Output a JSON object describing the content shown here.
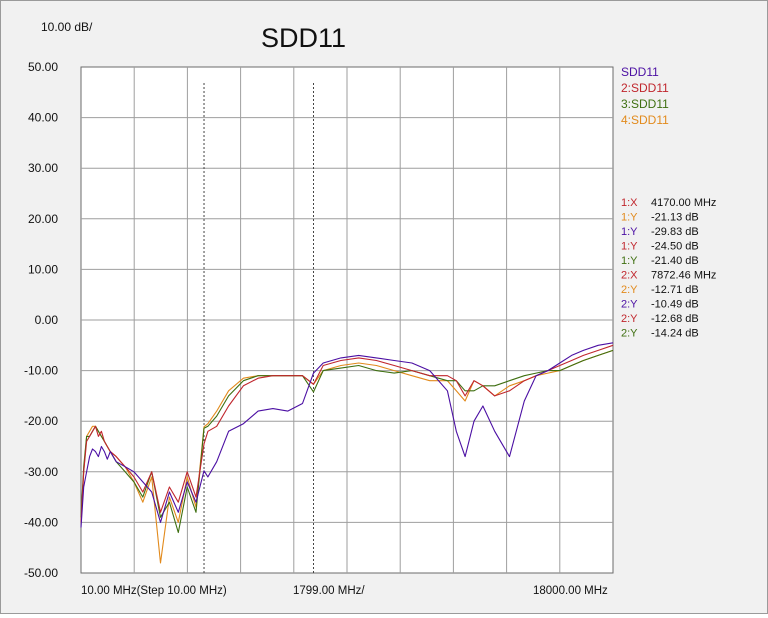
{
  "chart_data": {
    "type": "line",
    "title": "SDD11",
    "scale_label": "10.00 dB/",
    "x_axis": {
      "start_label": "10.00 MHz(Step 10.00 MHz)",
      "center_label": "1799.00 MHz/",
      "stop_label": "18000.00 MHz",
      "xlim": [
        10,
        18000
      ]
    },
    "y_axis": {
      "ylim": [
        -50,
        50
      ],
      "tick_labels": [
        "50.00",
        "40.00",
        "30.00",
        "20.00",
        "10.00",
        "0.00",
        "-10.00",
        "-20.00",
        "-30.00",
        "-40.00",
        "-50.00"
      ]
    },
    "grid": true,
    "legend_position": "top-right",
    "series": [
      {
        "name": "SDD11",
        "color": "#4b0fa3",
        "x": [
          10,
          100,
          200,
          300,
          400,
          500,
          600,
          700,
          800,
          900,
          1000,
          1200,
          1500,
          1800,
          2100,
          2400,
          2700,
          3000,
          3300,
          3600,
          3900,
          4170,
          4300,
          4600,
          5000,
          5500,
          6000,
          6500,
          7000,
          7500,
          7872,
          8200,
          8800,
          9400,
          10000,
          10600,
          11200,
          11800,
          12400,
          12700,
          13000,
          13300,
          13600,
          14000,
          14500,
          15000,
          15400,
          15800,
          16200,
          16600,
          17000,
          17500,
          18000
        ],
        "y": [
          -41,
          -33,
          -30,
          -27,
          -25.5,
          -26,
          -27,
          -25,
          -26,
          -27.5,
          -26,
          -28,
          -29,
          -30,
          -32,
          -34,
          -40,
          -34,
          -38,
          -32,
          -36,
          -29.8,
          -31,
          -28,
          -22,
          -20.5,
          -18,
          -17.5,
          -18,
          -16.5,
          -10.5,
          -8.5,
          -7.5,
          -7,
          -7.5,
          -8,
          -8.5,
          -10,
          -14,
          -22,
          -27,
          -20,
          -17,
          -22,
          -27,
          -16,
          -11,
          -10,
          -8.5,
          -7,
          -6,
          -5,
          -4.5
        ]
      },
      {
        "name": "2:SDD11",
        "color": "#c0262d",
        "x": [
          10,
          100,
          200,
          300,
          400,
          500,
          600,
          700,
          800,
          900,
          1000,
          1200,
          1500,
          1800,
          2100,
          2400,
          2700,
          3000,
          3300,
          3600,
          3900,
          4170,
          4300,
          4600,
          5000,
          5500,
          6000,
          6500,
          7000,
          7500,
          7872,
          8200,
          8800,
          9400,
          10000,
          10600,
          11200,
          11800,
          12400,
          12700,
          13000,
          13300,
          13600,
          14000,
          14500,
          15000,
          15400,
          15800,
          16200,
          16600,
          17000,
          17500,
          18000
        ],
        "y": [
          -40,
          -30,
          -24,
          -23,
          -22,
          -21,
          -23,
          -22,
          -24,
          -25,
          -26,
          -27,
          -29,
          -31,
          -34,
          -30,
          -38,
          -33,
          -36,
          -30,
          -35,
          -24.5,
          -22,
          -21,
          -17,
          -13,
          -11.5,
          -11,
          -11,
          -11,
          -12.7,
          -9,
          -8,
          -7.5,
          -8,
          -9,
          -10,
          -11,
          -11,
          -12,
          -15,
          -12,
          -13,
          -15,
          -14,
          -12,
          -11,
          -10,
          -9,
          -8,
          -7,
          -6,
          -5
        ]
      },
      {
        "name": "3:SDD11",
        "color": "#3e6f10",
        "x": [
          10,
          100,
          200,
          300,
          400,
          500,
          600,
          700,
          800,
          900,
          1000,
          1200,
          1500,
          1800,
          2100,
          2400,
          2700,
          3000,
          3300,
          3600,
          3900,
          4170,
          4300,
          4600,
          5000,
          5500,
          6000,
          6500,
          7000,
          7500,
          7872,
          8200,
          8800,
          9400,
          10000,
          10600,
          11200,
          11800,
          12400,
          12700,
          13000,
          13300,
          13600,
          14000,
          14500,
          15000,
          15400,
          15800,
          16200,
          16600,
          17000,
          17500,
          18000
        ],
        "y": [
          -39,
          -29,
          -23,
          -23,
          -22,
          -21,
          -22,
          -23,
          -24,
          -25,
          -26,
          -28,
          -30,
          -32,
          -35,
          -30,
          -39,
          -36,
          -42,
          -33,
          -38,
          -21.4,
          -21,
          -19,
          -15,
          -12,
          -11,
          -11,
          -11,
          -11,
          -14.2,
          -10,
          -9.5,
          -9,
          -10,
          -10.5,
          -10,
          -11,
          -12,
          -12,
          -14,
          -14,
          -13,
          -13,
          -12,
          -11,
          -10.5,
          -10,
          -10,
          -9,
          -8,
          -7,
          -6
        ]
      },
      {
        "name": "4:SDD11",
        "color": "#e28a1c",
        "x": [
          10,
          100,
          200,
          300,
          400,
          500,
          600,
          700,
          800,
          900,
          1000,
          1200,
          1500,
          1800,
          2100,
          2400,
          2700,
          3000,
          3300,
          3600,
          3900,
          4170,
          4300,
          4600,
          5000,
          5500,
          6000,
          6500,
          7000,
          7500,
          7872,
          8200,
          8800,
          9400,
          10000,
          10600,
          11200,
          11800,
          12400,
          12700,
          13000,
          13300,
          13600,
          14000,
          14500,
          15000,
          15400,
          15800,
          16200,
          16600,
          17000,
          17500,
          18000
        ],
        "y": [
          -40,
          -30,
          -23,
          -22,
          -21,
          -21,
          -22,
          -23,
          -24,
          -25,
          -26,
          -27,
          -29,
          -32,
          -36,
          -31,
          -48,
          -35,
          -40,
          -31,
          -37,
          -21.1,
          -20.5,
          -18,
          -14,
          -11.5,
          -11,
          -11,
          -11,
          -11,
          -12.7,
          -10,
          -9,
          -8.5,
          -9,
          -10,
          -11,
          -12,
          -12,
          -14,
          -16,
          -12,
          -13,
          -15,
          -13,
          -12,
          -11,
          -10.5,
          -10,
          -9,
          -8,
          -7,
          -6
        ]
      }
    ],
    "markers": [
      {
        "x_label": "1:X",
        "x_value": "4170.00 MHz",
        "x_mhz": 4170,
        "readouts": [
          {
            "label": "1:Y",
            "value": "-21.13 dB",
            "color": "#e28a1c"
          },
          {
            "label": "1:Y",
            "value": "-29.83 dB",
            "color": "#4b0fa3"
          },
          {
            "label": "1:Y",
            "value": "-24.50 dB",
            "color": "#c0262d"
          },
          {
            "label": "1:Y",
            "value": "-21.40 dB",
            "color": "#3e6f10"
          }
        ]
      },
      {
        "x_label": "2:X",
        "x_value": "7872.46 MHz",
        "x_mhz": 7872.46,
        "readouts": [
          {
            "label": "2:Y",
            "value": "-12.71 dB",
            "color": "#e28a1c"
          },
          {
            "label": "2:Y",
            "value": "-10.49 dB",
            "color": "#4b0fa3"
          },
          {
            "label": "2:Y",
            "value": "-12.68 dB",
            "color": "#c0262d"
          },
          {
            "label": "2:Y",
            "value": "-14.24 dB",
            "color": "#3e6f10"
          }
        ]
      }
    ],
    "marker_x_color": "#c0262d"
  }
}
